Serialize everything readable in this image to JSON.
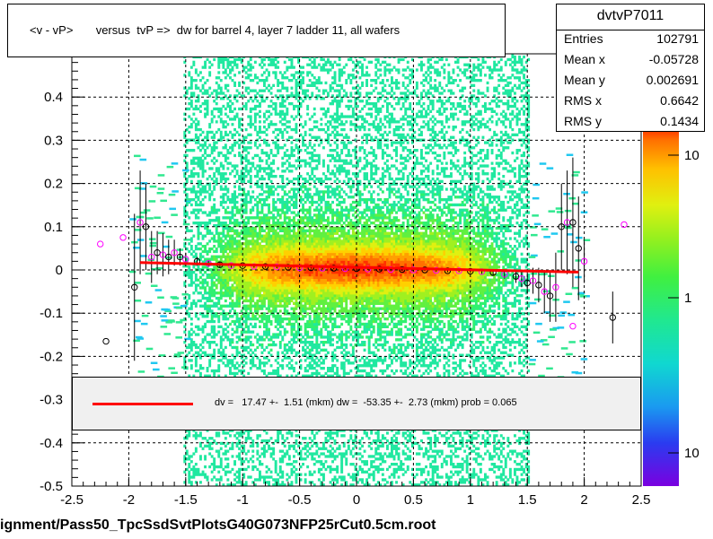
{
  "title": "<v - vP>       versus  tvP =>  dw for barrel 4, layer 7 ladder 11, all wafers",
  "stats": {
    "name": "dvtvP7011",
    "rows": [
      {
        "label": "Entries",
        "value": "102791"
      },
      {
        "label": "Mean x",
        "value": "-0.05728"
      },
      {
        "label": "Mean y",
        "value": "0.002691"
      },
      {
        "label": "RMS x",
        "value": "0.6642"
      },
      {
        "label": "RMS y",
        "value": "0.1434"
      }
    ]
  },
  "legend_text": "dv =   17.47 +-  1.51 (mkm) dw =  -53.35 +-  2.73 (mkm) prob = 0.065",
  "footer": "ignment/Pass50_TpcSsdSvtPlotsG40G073NFP25rCut0.5cm.root",
  "colors": {
    "fit_line": "#ff0000",
    "legend_bg": "#f0f0f0",
    "profile_black": "#000000",
    "profile_magenta": "#ff00ff"
  },
  "chart_data": {
    "type": "heatmap",
    "xlim": [
      -2.5,
      2.5
    ],
    "ylim": [
      -0.5,
      0.5
    ],
    "x_ticks": [
      -2.5,
      -2,
      -1.5,
      -1,
      -0.5,
      0,
      0.5,
      1,
      1.5,
      2,
      2.5
    ],
    "x_tick_labels": [
      "-2.5",
      "-2",
      "-1.5",
      "-1",
      "-0.5",
      "0",
      "0.5",
      "1",
      "1.5",
      "2",
      "2.5"
    ],
    "y_ticks": [
      -0.5,
      -0.4,
      -0.3,
      -0.2,
      -0.1,
      0,
      0.1,
      0.2,
      0.3,
      0.4
    ],
    "y_tick_labels": [
      "-0.5",
      "-0.4",
      "-0.3",
      "-0.2",
      "-0.1",
      "0",
      "0.1",
      "0.2",
      "0.3",
      "0.4"
    ],
    "grid": true,
    "colorbar_labels": [
      "10",
      "1",
      "10"
    ],
    "fit_line": {
      "x": [
        -1.9,
        1.95
      ],
      "y": [
        0.017,
        -0.005
      ]
    },
    "profile_points": [
      {
        "x": -2.25,
        "y": 0.06,
        "err": 0.0
      },
      {
        "x": -2.2,
        "y": -0.165,
        "err": 0.0
      },
      {
        "x": -2.05,
        "y": 0.075,
        "err": 0.0
      },
      {
        "x": -1.95,
        "y": -0.04,
        "err": 0.17
      },
      {
        "x": -1.9,
        "y": 0.11,
        "err": 0.12
      },
      {
        "x": -1.85,
        "y": 0.1,
        "err": 0.1
      },
      {
        "x": -1.8,
        "y": 0.03,
        "err": 0.06
      },
      {
        "x": -1.75,
        "y": 0.04,
        "err": 0.05
      },
      {
        "x": -1.7,
        "y": 0.035,
        "err": 0.05
      },
      {
        "x": -1.65,
        "y": 0.03,
        "err": 0.04
      },
      {
        "x": -1.6,
        "y": 0.04,
        "err": 0.03
      },
      {
        "x": -1.55,
        "y": 0.03,
        "err": 0.02
      },
      {
        "x": -1.5,
        "y": 0.025,
        "err": 0.015
      },
      {
        "x": -1.4,
        "y": 0.02,
        "err": 0.01
      },
      {
        "x": -1.3,
        "y": 0.015,
        "err": 0.008
      },
      {
        "x": -1.2,
        "y": 0.012,
        "err": 0.006
      },
      {
        "x": -1.1,
        "y": 0.01,
        "err": 0.005
      },
      {
        "x": -1.0,
        "y": 0.01,
        "err": 0.004
      },
      {
        "x": -0.9,
        "y": 0.008,
        "err": 0.003
      },
      {
        "x": -0.8,
        "y": 0.008,
        "err": 0.003
      },
      {
        "x": -0.7,
        "y": 0.007,
        "err": 0.003
      },
      {
        "x": -0.6,
        "y": 0.006,
        "err": 0.002
      },
      {
        "x": -0.5,
        "y": 0.005,
        "err": 0.002
      },
      {
        "x": -0.4,
        "y": 0.005,
        "err": 0.002
      },
      {
        "x": -0.3,
        "y": 0.004,
        "err": 0.002
      },
      {
        "x": -0.2,
        "y": 0.004,
        "err": 0.002
      },
      {
        "x": -0.1,
        "y": 0.003,
        "err": 0.002
      },
      {
        "x": 0.0,
        "y": 0.003,
        "err": 0.002
      },
      {
        "x": 0.1,
        "y": 0.002,
        "err": 0.002
      },
      {
        "x": 0.2,
        "y": 0.002,
        "err": 0.002
      },
      {
        "x": 0.3,
        "y": 0.001,
        "err": 0.002
      },
      {
        "x": 0.4,
        "y": 0.001,
        "err": 0.002
      },
      {
        "x": 0.5,
        "y": 0.0,
        "err": 0.002
      },
      {
        "x": 0.6,
        "y": 0.0,
        "err": 0.002
      },
      {
        "x": 0.7,
        "y": -0.001,
        "err": 0.003
      },
      {
        "x": 0.8,
        "y": -0.002,
        "err": 0.003
      },
      {
        "x": 0.9,
        "y": -0.002,
        "err": 0.003
      },
      {
        "x": 1.0,
        "y": -0.003,
        "err": 0.004
      },
      {
        "x": 1.1,
        "y": -0.004,
        "err": 0.005
      },
      {
        "x": 1.2,
        "y": -0.006,
        "err": 0.007
      },
      {
        "x": 1.3,
        "y": -0.01,
        "err": 0.01
      },
      {
        "x": 1.4,
        "y": -0.015,
        "err": 0.015
      },
      {
        "x": 1.45,
        "y": -0.02,
        "err": 0.02
      },
      {
        "x": 1.5,
        "y": -0.03,
        "err": 0.025
      },
      {
        "x": 1.55,
        "y": -0.025,
        "err": 0.03
      },
      {
        "x": 1.6,
        "y": -0.035,
        "err": 0.04
      },
      {
        "x": 1.65,
        "y": -0.05,
        "err": 0.05
      },
      {
        "x": 1.7,
        "y": -0.06,
        "err": 0.06
      },
      {
        "x": 1.75,
        "y": -0.04,
        "err": 0.08
      },
      {
        "x": 1.8,
        "y": 0.1,
        "err": 0.1
      },
      {
        "x": 1.85,
        "y": 0.11,
        "err": 0.12
      },
      {
        "x": 1.9,
        "y": 0.11,
        "err": 0.15
      },
      {
        "x": 1.9,
        "y": -0.13,
        "err": 0.0
      },
      {
        "x": 1.95,
        "y": 0.05,
        "err": 0.12
      },
      {
        "x": 2.0,
        "y": 0.02,
        "err": 0.05
      },
      {
        "x": 2.25,
        "y": -0.11,
        "err": 0.06
      },
      {
        "x": 2.35,
        "y": 0.105,
        "err": 0.0
      }
    ]
  }
}
